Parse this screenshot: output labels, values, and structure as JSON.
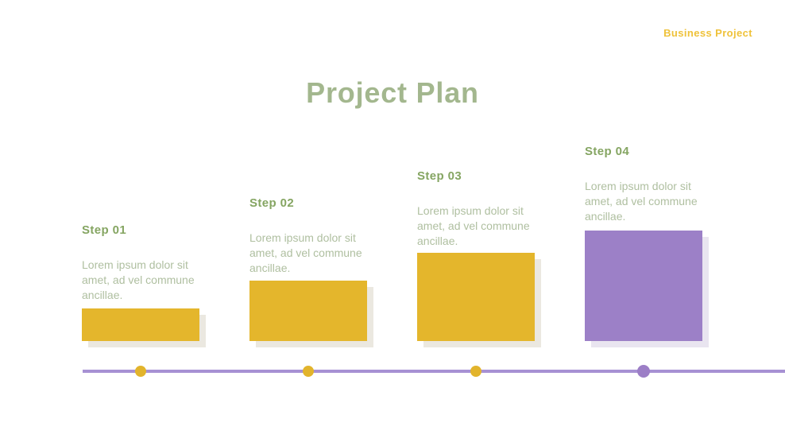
{
  "brand": "Business Project",
  "title": "Project Plan",
  "steps": [
    {
      "label": "Step 01",
      "description": "Lorem ipsum dolor sit amet, ad vel commune ancillae.",
      "bar_color": "#E4B62C",
      "dot_color": "#E2B42C"
    },
    {
      "label": "Step 02",
      "description": "Lorem ipsum dolor sit amet, ad vel commune ancillae.",
      "bar_color": "#E4B62C",
      "dot_color": "#E2B42C"
    },
    {
      "label": "Step 03",
      "description": "Lorem ipsum dolor sit amet, ad vel commune ancillae.",
      "bar_color": "#E4B62C",
      "dot_color": "#E2B42C"
    },
    {
      "label": "Step 04",
      "description": "Lorem ipsum dolor sit amet, ad vel commune ancillae.",
      "bar_color": "#9C80C7",
      "dot_color": "#9C7EC6"
    }
  ],
  "timeline": {
    "line_color": "#A791D3"
  },
  "colors": {
    "title_green": "#A3B78E",
    "step_label_green": "#85A562",
    "body_text_green": "#AFBFA0",
    "brand_yellow": "#EFC23A",
    "bar_yellow": "#E4B62C",
    "bar_purple": "#9C80C7",
    "bar_shadow_warm": "#EBE8E0",
    "bar_shadow_cool": "#E9E5F0"
  }
}
